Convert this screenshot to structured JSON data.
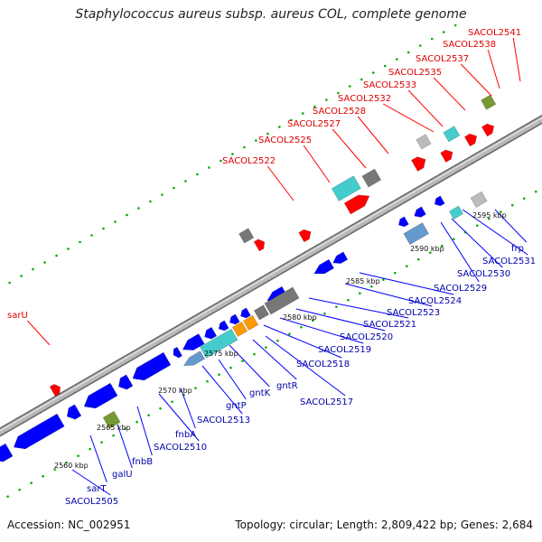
{
  "title": "Staphylococcus aureus subsp. aureus COL, complete genome",
  "footer": {
    "accession": "Accession: NC_002951",
    "summary": "Topology: circular; Length: 2,809,422 bp; Genes: 2,684"
  },
  "colors": {
    "forward_label": "#dd0000",
    "reverse_label": "#0000aa",
    "forward_gene": "#ff0000",
    "reverse_gene": "#0000ff",
    "backbone": "#999999",
    "tick_dots": "#00aa00",
    "cds_gray": "#777777",
    "cds_cyan": "#44cccc",
    "cds_orange": "#ff9900",
    "cds_olive": "#779933",
    "cds_steelblue": "#6699cc",
    "cds_lightgray": "#bbbbbb"
  },
  "ticks": [
    {
      "label": "2560 kbp"
    },
    {
      "label": "2565 kbp"
    },
    {
      "label": "2570 kbp"
    },
    {
      "label": "2575 kbp"
    },
    {
      "label": "2580 kbp"
    },
    {
      "label": "2585 kbp"
    },
    {
      "label": "2590 kbp"
    },
    {
      "label": "2595 kbp"
    }
  ],
  "forward_genes": [
    {
      "name": "sarU"
    },
    {
      "name": "SACOL2522"
    },
    {
      "name": "SACOL2525"
    },
    {
      "name": "SACOL2527"
    },
    {
      "name": "SACOL2528"
    },
    {
      "name": "SACOL2532"
    },
    {
      "name": "SACOL2533"
    },
    {
      "name": "SACOL2535"
    },
    {
      "name": "SACOL2537"
    },
    {
      "name": "SACOL2538"
    },
    {
      "name": "SACOL2541"
    }
  ],
  "reverse_genes": [
    {
      "name": "SACOL2505"
    },
    {
      "name": "sarT"
    },
    {
      "name": "galU"
    },
    {
      "name": "fnbB"
    },
    {
      "name": "SACOL2510"
    },
    {
      "name": "fnbA"
    },
    {
      "name": "SACOL2513"
    },
    {
      "name": "gntP"
    },
    {
      "name": "gntK"
    },
    {
      "name": "gntR"
    },
    {
      "name": "SACOL2517"
    },
    {
      "name": "SACOL2518"
    },
    {
      "name": "SACOL2519"
    },
    {
      "name": "SACOL2520"
    },
    {
      "name": "SACOL2521"
    },
    {
      "name": "SACOL2523"
    },
    {
      "name": "SACOL2524"
    },
    {
      "name": "SACOL2529"
    },
    {
      "name": "SACOL2530"
    },
    {
      "name": "SACOL2531"
    },
    {
      "name": "frp"
    }
  ]
}
